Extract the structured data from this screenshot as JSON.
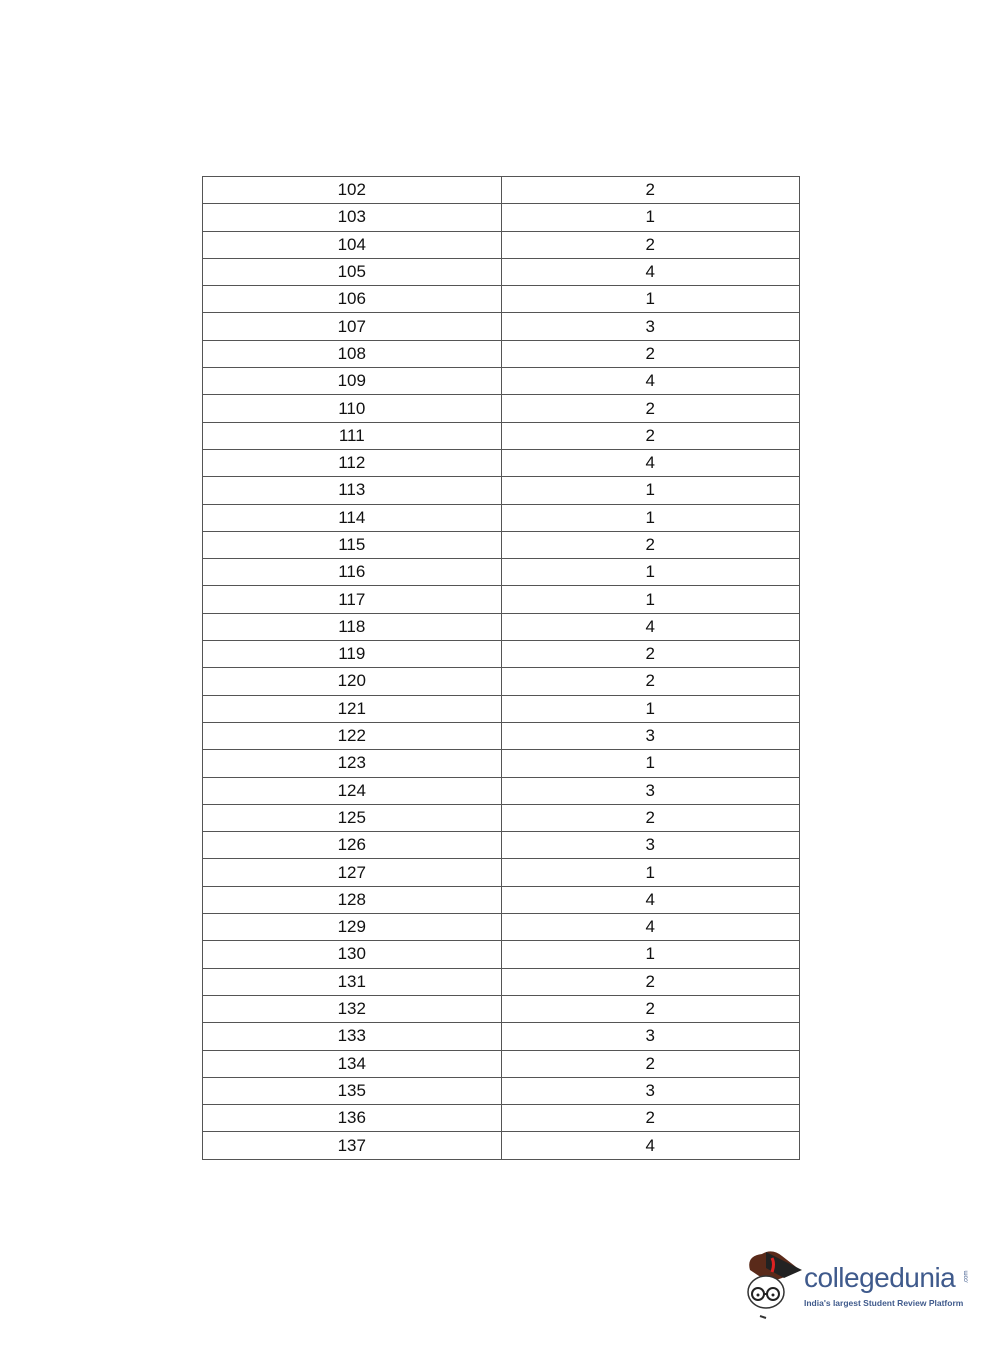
{
  "table": {
    "rows": [
      [
        "102",
        "2"
      ],
      [
        "103",
        "1"
      ],
      [
        "104",
        "2"
      ],
      [
        "105",
        "4"
      ],
      [
        "106",
        "1"
      ],
      [
        "107",
        "3"
      ],
      [
        "108",
        "2"
      ],
      [
        "109",
        "4"
      ],
      [
        "110",
        "2"
      ],
      [
        "111",
        "2"
      ],
      [
        "112",
        "4"
      ],
      [
        "113",
        "1"
      ],
      [
        "114",
        "1"
      ],
      [
        "115",
        "2"
      ],
      [
        "116",
        "1"
      ],
      [
        "117",
        "1"
      ],
      [
        "118",
        "4"
      ],
      [
        "119",
        "2"
      ],
      [
        "120",
        "2"
      ],
      [
        "121",
        "1"
      ],
      [
        "122",
        "3"
      ],
      [
        "123",
        "1"
      ],
      [
        "124",
        "3"
      ],
      [
        "125",
        "2"
      ],
      [
        "126",
        "3"
      ],
      [
        "127",
        "1"
      ],
      [
        "128",
        "4"
      ],
      [
        "129",
        "4"
      ],
      [
        "130",
        "1"
      ],
      [
        "131",
        "2"
      ],
      [
        "132",
        "2"
      ],
      [
        "133",
        "3"
      ],
      [
        "134",
        "2"
      ],
      [
        "135",
        "3"
      ],
      [
        "136",
        "2"
      ],
      [
        "137",
        "4"
      ]
    ]
  },
  "logo": {
    "name": "collegedunia",
    "suffix": ".com",
    "tagline": "India's largest Student Review Platform",
    "color": "#3f5a8c"
  }
}
